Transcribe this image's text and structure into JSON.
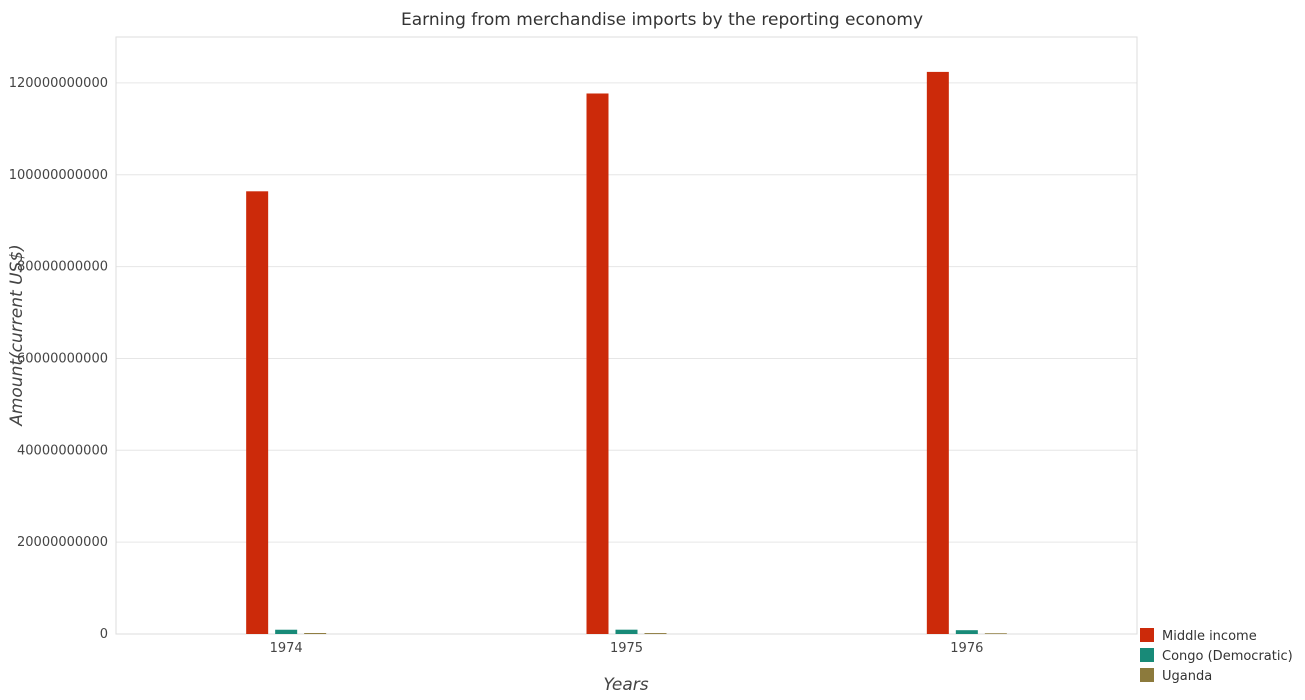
{
  "chart_data": {
    "type": "bar",
    "title": "Earning from merchandise imports by the reporting economy",
    "xlabel": "Years",
    "ylabel": "Amount(current US$)",
    "categories": [
      "1974",
      "1975",
      "1976"
    ],
    "ylim": [
      0,
      130000000000
    ],
    "yticks": [
      0,
      20000000000,
      40000000000,
      60000000000,
      80000000000,
      100000000000,
      120000000000
    ],
    "ytick_labels": [
      "0",
      "20000000000",
      "40000000000",
      "60000000000",
      "80000000000",
      "100000000000",
      "120000000000"
    ],
    "grid": true,
    "legend_position": "bottom-right",
    "series": [
      {
        "name": "Middle income",
        "color": "#cc2a0a",
        "values": [
          96400000000,
          117700000000,
          122400000000
        ]
      },
      {
        "name": "Congo (Democratic)",
        "color": "#188a78",
        "values": [
          930000000,
          940000000,
          830000000
        ]
      },
      {
        "name": "Uganda",
        "color": "#8c7a3c",
        "values": [
          210000000,
          200000000,
          160000000
        ]
      }
    ]
  }
}
